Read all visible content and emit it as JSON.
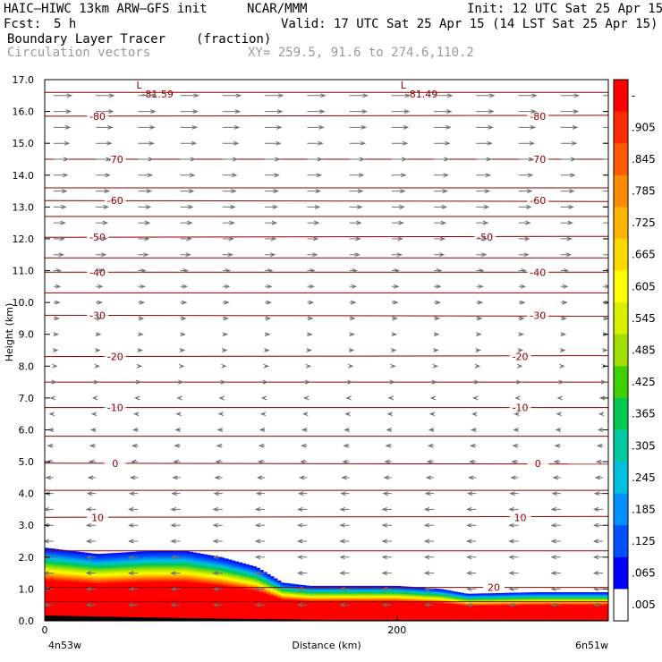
{
  "header": {
    "model": "HAIC–HIWC 13km ARW–GFS init",
    "org": "NCAR/MMM",
    "init": "Init: 12 UTC Sat 25 Apr 15",
    "fcst_label": "Fcst:",
    "fcst_value": "5 h",
    "valid": "Valid: 17 UTC Sat 25 Apr 15 (14 LST Sat 25 Apr 15)",
    "field": "Boundary Layer Tracer",
    "field_units": "(fraction)",
    "vectors": "Circulation vectors",
    "xy": "XY= 259.5, 91.6 to 274.6,110.2"
  },
  "chart_data": {
    "type": "area",
    "xlabel": "Distance (km)",
    "ylabel": "Height (km)",
    "xlim": [
      0,
      320
    ],
    "ylim": [
      0,
      17
    ],
    "x_ticks": [
      0,
      200
    ],
    "y_ticks": [
      "0.0",
      "1.0",
      "2.0",
      "3.0",
      "4.0",
      "5.0",
      "6.0",
      "7.0",
      "8.0",
      "9.0",
      "10.0",
      "11.0",
      "12.0",
      "13.0",
      "14.0",
      "15.0",
      "16.0",
      "17.0"
    ],
    "x_endpoints": {
      "left": "4n53w",
      "right": "6n51w"
    },
    "tracer_top_km": {
      "x": [
        0,
        30,
        60,
        80,
        100,
        120,
        135,
        150,
        170,
        200,
        225,
        240,
        280,
        320
      ],
      "top": [
        2.3,
        2.1,
        2.2,
        2.2,
        2.0,
        1.7,
        1.2,
        1.1,
        1.1,
        1.1,
        1.0,
        0.85,
        0.9,
        0.9
      ]
    },
    "contours": [
      {
        "label": "-80",
        "z": 15.85
      },
      {
        "label": "-70",
        "z": 14.5
      },
      {
        "label": "-60",
        "z": 13.2
      },
      {
        "label": "-50",
        "z": 12.05
      },
      {
        "label": "-40",
        "z": 10.95
      },
      {
        "label": "-30",
        "z": 9.6
      },
      {
        "label": "-20",
        "z": 8.3
      },
      {
        "label": "-10",
        "z": 6.7
      },
      {
        "label": "0",
        "z": 4.95
      },
      {
        "label": "10",
        "z": 3.25
      },
      {
        "label": "20",
        "z": 1.05
      }
    ],
    "extrema": [
      {
        "symbol": "L",
        "value": "-81.59",
        "x": 50
      },
      {
        "symbol": "L",
        "value": "-81.49",
        "x": 200
      }
    ],
    "colorbar": {
      "labels": [
        "-",
        ".905",
        ".845",
        ".785",
        ".725",
        ".665",
        ".605",
        ".545",
        ".485",
        ".425",
        ".365",
        ".305",
        ".245",
        ".185",
        ".125",
        ".065",
        ".005"
      ],
      "colors": [
        "#ff0000",
        "#ff2a00",
        "#ff5a00",
        "#ff8c00",
        "#ffb400",
        "#ffd800",
        "#ffff00",
        "#d8f000",
        "#a0e000",
        "#40d000",
        "#00c850",
        "#00c8a0",
        "#00c0e0",
        "#0090ff",
        "#0050ff",
        "#0000ff",
        "#ffffff"
      ]
    }
  }
}
